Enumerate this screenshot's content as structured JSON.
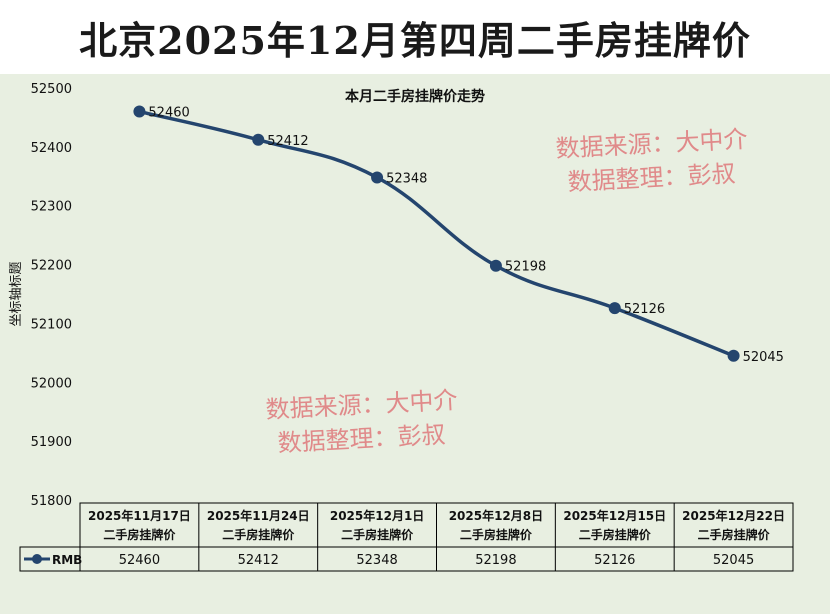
{
  "page_title": "北京2025年12月第四周二手房挂牌价",
  "watermarks": [
    {
      "line1": "数据来源：大中介",
      "line2": "数据整理：彭叔"
    },
    {
      "line1": "数据来源：大中介",
      "line2": "数据整理：彭叔"
    }
  ],
  "colors": {
    "series": "#24456e",
    "background": "#e8efe1",
    "watermark": "#e08a8a"
  },
  "chart_data": {
    "type": "line",
    "title": "本月二手房挂牌价走势",
    "ylabel": "坐标轴标题",
    "xlabel": "",
    "ylim": [
      51800,
      52500
    ],
    "yticks": [
      51800,
      51900,
      52000,
      52100,
      52200,
      52300,
      52400,
      52500
    ],
    "categories": [
      [
        "2025年11月17日",
        "二手房挂牌价"
      ],
      [
        "2025年11月24日",
        "二手房挂牌价"
      ],
      [
        "2025年12月1日",
        "二手房挂牌价"
      ],
      [
        "2025年12月8日",
        "二手房挂牌价"
      ],
      [
        "2025年12月15日",
        "二手房挂牌价"
      ],
      [
        "2025年12月22日",
        "二手房挂牌价"
      ]
    ],
    "series": [
      {
        "name": "RMB",
        "values": [
          52460,
          52412,
          52348,
          52198,
          52126,
          52045
        ]
      }
    ],
    "data_labels": true,
    "grid": false,
    "legend": "data-table"
  }
}
